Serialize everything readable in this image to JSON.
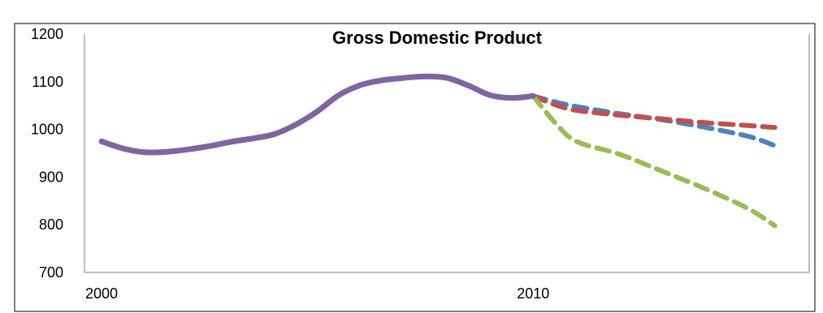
{
  "chart_data": {
    "type": "line",
    "title": "Gross Domestic Product",
    "xlabel": "",
    "ylabel": "",
    "xlim": [
      2000,
      2016
    ],
    "ylim": [
      700,
      1200
    ],
    "y_ticks": [
      700,
      800,
      900,
      1000,
      1100,
      1200
    ],
    "x_tick_labels": [
      {
        "x": 2000,
        "label": "2000"
      },
      {
        "x": 2010,
        "label": "2010"
      }
    ],
    "grid": false,
    "legend": "none",
    "series": [
      {
        "style": "solid",
        "color": "#8064a2",
        "points": [
          [
            2000,
            975
          ],
          [
            2000.5,
            960
          ],
          [
            2001,
            952
          ],
          [
            2001.5,
            953
          ],
          [
            2002,
            958
          ],
          [
            2002.5,
            965
          ],
          [
            2003,
            974
          ],
          [
            2003.5,
            981
          ],
          [
            2004,
            990
          ],
          [
            2004.5,
            1010
          ],
          [
            2005,
            1038
          ],
          [
            2005.5,
            1072
          ],
          [
            2006,
            1093
          ],
          [
            2006.5,
            1103
          ],
          [
            2007,
            1108
          ],
          [
            2007.5,
            1111
          ],
          [
            2008,
            1108
          ],
          [
            2008.5,
            1092
          ],
          [
            2009,
            1072
          ],
          [
            2009.5,
            1066
          ],
          [
            2010,
            1070
          ]
        ]
      },
      {
        "style": "dashed",
        "color": "#4f81bd",
        "points": [
          [
            2010,
            1070
          ],
          [
            2010.5,
            1058
          ],
          [
            2011,
            1048
          ],
          [
            2012,
            1033
          ],
          [
            2013,
            1020
          ],
          [
            2014,
            1004
          ],
          [
            2015,
            985
          ],
          [
            2015.6,
            966
          ]
        ]
      },
      {
        "style": "dashed",
        "color": "#c0504d",
        "points": [
          [
            2010,
            1070
          ],
          [
            2010.5,
            1052
          ],
          [
            2011,
            1040
          ],
          [
            2012,
            1030
          ],
          [
            2013,
            1022
          ],
          [
            2014,
            1014
          ],
          [
            2015,
            1008
          ],
          [
            2015.6,
            1004
          ]
        ]
      },
      {
        "style": "dashed",
        "color": "#9bbb59",
        "points": [
          [
            2010,
            1070
          ],
          [
            2010.5,
            1015
          ],
          [
            2011,
            975
          ],
          [
            2012,
            948
          ],
          [
            2013,
            912
          ],
          [
            2014,
            875
          ],
          [
            2015,
            833
          ],
          [
            2015.6,
            798
          ]
        ]
      }
    ]
  }
}
